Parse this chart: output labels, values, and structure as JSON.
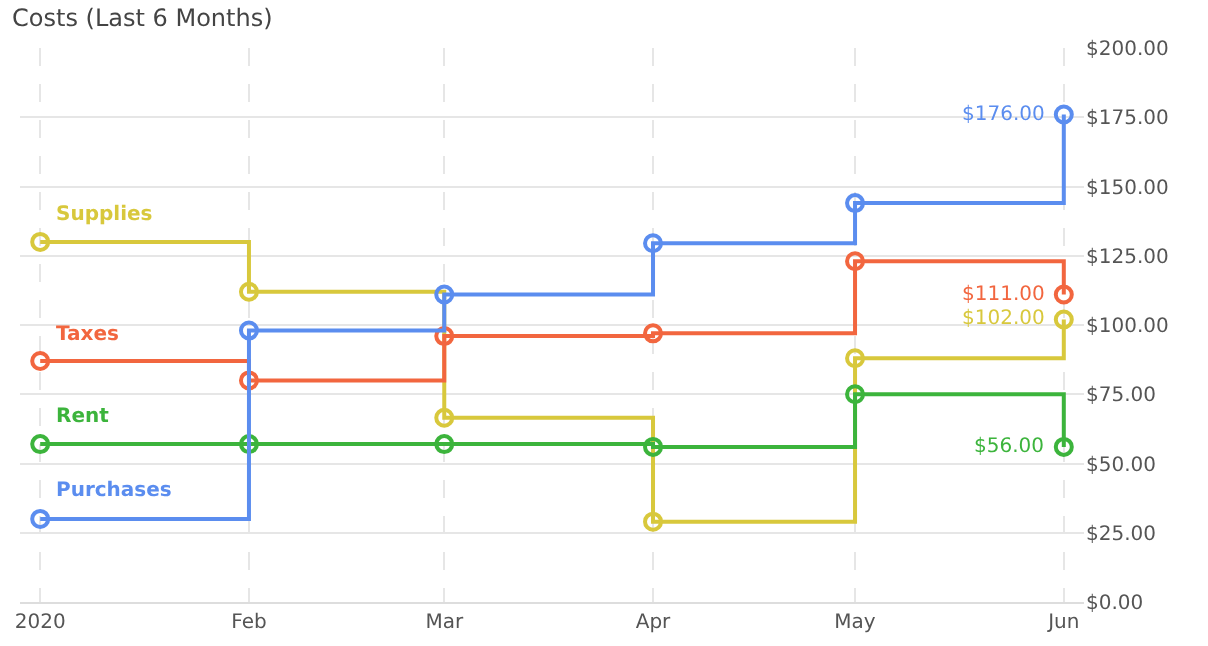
{
  "chart_data": {
    "type": "step",
    "title": "Costs (Last 6 Months)",
    "x": [
      "2020-01-01",
      "2020-02-01",
      "2020-03-01",
      "2020-04-01",
      "2020-05-01",
      "2020-06-01"
    ],
    "series": [
      {
        "name": "Supplies",
        "color": "#d8c83c",
        "values": [
          130,
          112,
          66.5,
          29,
          88,
          102
        ],
        "value_labels": [
          null,
          null,
          null,
          null,
          null,
          "$102.00"
        ]
      },
      {
        "name": "Taxes",
        "color": "#f2663f",
        "values": [
          87,
          80,
          96,
          97,
          123,
          111
        ],
        "value_labels": [
          null,
          null,
          null,
          null,
          null,
          "$111.00"
        ]
      },
      {
        "name": "Rent",
        "color": "#3cb43c",
        "values": [
          57,
          57,
          57,
          56,
          75,
          56
        ],
        "value_labels": [
          null,
          null,
          null,
          null,
          null,
          "$56.00"
        ]
      },
      {
        "name": "Purchases",
        "color": "#5b8def",
        "values": [
          30,
          98,
          111,
          129.5,
          144,
          176
        ],
        "value_labels": [
          null,
          null,
          null,
          null,
          null,
          "$176.00"
        ]
      }
    ],
    "xlim": [
      "2019-12-29",
      "2020-06-04"
    ],
    "xticks": [
      {
        "value": "2020-01-01",
        "label": "2020"
      },
      {
        "value": "2020-02-01",
        "label": "Feb"
      },
      {
        "value": "2020-03-01",
        "label": "Mar"
      },
      {
        "value": "2020-04-01",
        "label": "Apr"
      },
      {
        "value": "2020-05-01",
        "label": "May"
      },
      {
        "value": "2020-06-01",
        "label": "Jun"
      }
    ],
    "ylim": [
      0,
      200
    ],
    "yticks": [
      {
        "value": 0,
        "label": "$0.00"
      },
      {
        "value": 25,
        "label": "$25.00"
      },
      {
        "value": 50,
        "label": "$50.00"
      },
      {
        "value": 75,
        "label": "$75.00"
      },
      {
        "value": 100,
        "label": "$100.00"
      },
      {
        "value": 125,
        "label": "$125.00"
      },
      {
        "value": 150,
        "label": "$150.00"
      },
      {
        "value": 175,
        "label": "$175.00"
      },
      {
        "value": 200,
        "label": "$200.00"
      }
    ],
    "grid": true,
    "legend": false,
    "marker": "circle",
    "line_style": "solid"
  }
}
